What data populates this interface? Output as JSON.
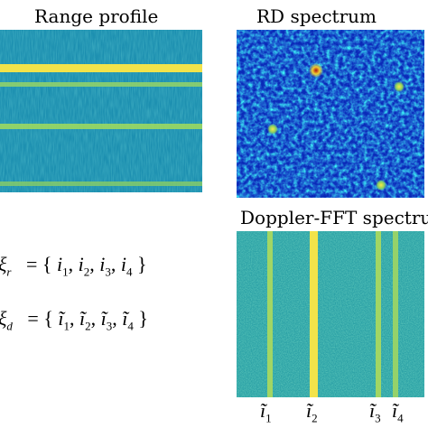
{
  "panels": {
    "range_profile": {
      "title": "Range profile"
    },
    "rd_spectrum": {
      "title": "RD spectrum"
    },
    "doppler_fft": {
      "title": "Doppler-FFT spectrum"
    }
  },
  "formulas": {
    "range": {
      "symbol": "ξ",
      "sub": "r",
      "equals": "=",
      "open": "{",
      "close": "}",
      "items": [
        {
          "var": "i",
          "sub": "1"
        },
        {
          "var": "i",
          "sub": "2"
        },
        {
          "var": "i",
          "sub": "3"
        },
        {
          "var": "i",
          "sub": "4"
        }
      ]
    },
    "doppler": {
      "symbol": "ξ",
      "sub": "d",
      "equals": "=",
      "open": "{",
      "close": "}",
      "items": [
        {
          "var": "ĩ",
          "sub": "1"
        },
        {
          "var": "ĩ",
          "sub": "2"
        },
        {
          "var": "ĩ",
          "sub": "3"
        },
        {
          "var": "ĩ",
          "sub": "4"
        }
      ]
    }
  },
  "doppler_ticks": [
    {
      "var": "ĩ",
      "sub": "1"
    },
    {
      "var": "ĩ",
      "sub": "2"
    },
    {
      "var": "ĩ",
      "sub": "3"
    },
    {
      "var": "ĩ",
      "sub": "4"
    }
  ],
  "colors": {
    "background": "#1aa4a8",
    "line": "#f2e34a",
    "deep": "#0a2ab8",
    "hot": "#e03020"
  }
}
